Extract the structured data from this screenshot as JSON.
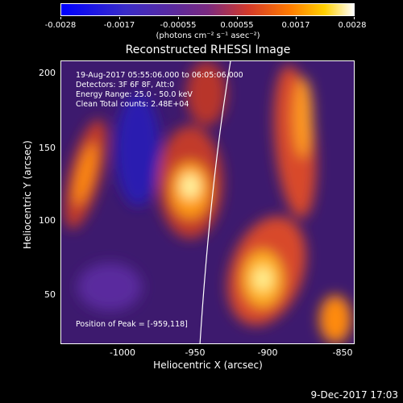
{
  "colorbar": {
    "ticks": [
      "-0.0028",
      "-0.0017",
      "-0.00055",
      "0.00055",
      "0.0017",
      "0.0028"
    ],
    "unit": "(photons cm⁻² s⁻¹ asec⁻²)"
  },
  "title": "Reconstructed RHESSI Image",
  "info": {
    "time_range": "19-Aug-2017 05:55:06.000 to 06:05:06.000",
    "detectors": "Detectors: 3F 6F 8F, Att:0",
    "energy": "Energy Range: 25.0 - 50.0 keV",
    "clean": "Clean     Total counts: 2.48E+04",
    "peak": "Position of Peak = [-959,118]"
  },
  "axes": {
    "xlabel": "Heliocentric X (arcsec)",
    "ylabel": "Heliocentric Y (arcsec)",
    "xticks": [
      "-1000",
      "-950",
      "-900",
      "-850"
    ],
    "yticks": [
      "200",
      "150",
      "100",
      "50"
    ]
  },
  "footer": {
    "date": "9-Dec-2017 17:03"
  },
  "colors": {
    "background": "#000000",
    "foreground": "#ffffff"
  }
}
